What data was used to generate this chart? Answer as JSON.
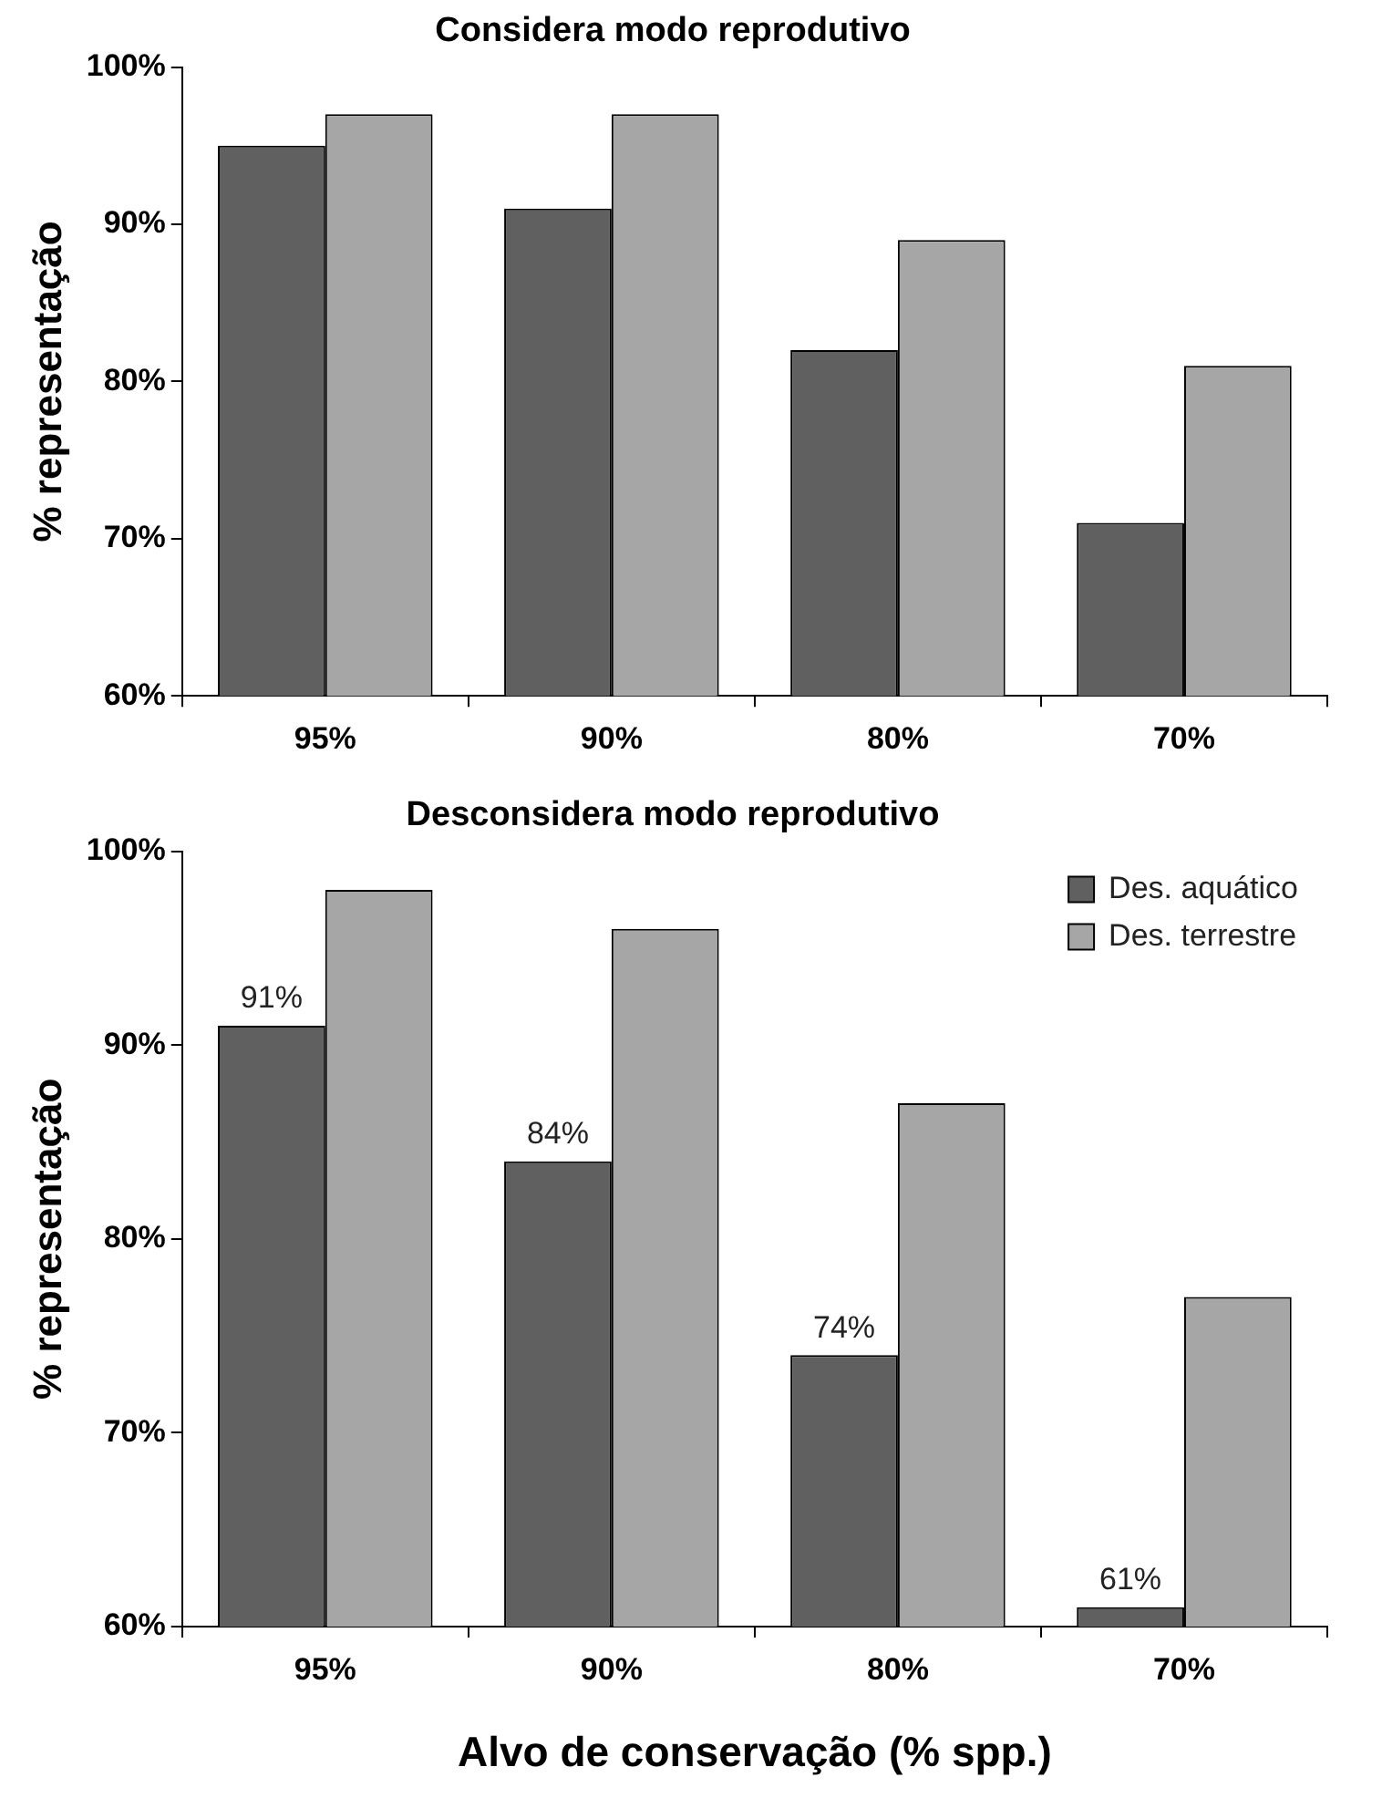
{
  "chart_data": [
    {
      "type": "bar",
      "title": "Considera modo reprodutivo",
      "ylabel": "% representação",
      "categories": [
        "95%",
        "90%",
        "80%",
        "70%"
      ],
      "series": [
        {
          "color": "#606060",
          "values": [
            95,
            91,
            82,
            71
          ]
        },
        {
          "color": "#a6a6a6",
          "values": [
            97,
            97,
            89,
            81
          ]
        }
      ],
      "ylim": [
        60,
        100
      ],
      "yticks": [
        {
          "value": 60,
          "label": "60%"
        },
        {
          "value": 70,
          "label": "70%"
        },
        {
          "value": 80,
          "label": "80%"
        },
        {
          "value": 90,
          "label": "90%"
        },
        {
          "value": 100,
          "label": "100%"
        }
      ],
      "grid": false,
      "legend": false
    },
    {
      "type": "bar",
      "title": "Desconsidera modo reprodutivo",
      "ylabel": "% representação",
      "xlabel": "Alvo de conservação (% spp.)",
      "categories": [
        "95%",
        "90%",
        "80%",
        "70%"
      ],
      "series": [
        {
          "name": "Des. aquático",
          "color": "#606060",
          "values": [
            91,
            84,
            74,
            61
          ],
          "value_labels": [
            "91%",
            "84%",
            "74%",
            "61%"
          ]
        },
        {
          "name": "Des. terrestre",
          "color": "#a6a6a6",
          "values": [
            98,
            96,
            87,
            77
          ]
        }
      ],
      "ylim": [
        60,
        100
      ],
      "yticks": [
        {
          "value": 60,
          "label": "60%"
        },
        {
          "value": 70,
          "label": "70%"
        },
        {
          "value": 80,
          "label": "80%"
        },
        {
          "value": 90,
          "label": "90%"
        },
        {
          "value": 100,
          "label": "100%"
        }
      ],
      "grid": false,
      "legend": "top right"
    }
  ]
}
